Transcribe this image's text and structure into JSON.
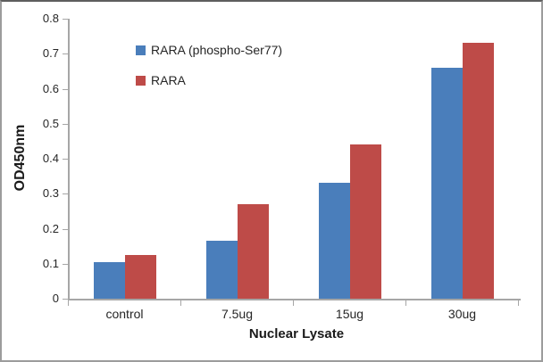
{
  "chart_data": {
    "type": "bar",
    "title": "",
    "xlabel": "Nuclear Lysate",
    "ylabel": "OD450nm",
    "categories": [
      "control",
      "7.5ug",
      "15ug",
      "30ug"
    ],
    "series": [
      {
        "name": "RARA (phospho-Ser77)",
        "color": "#4A7EBB",
        "values": [
          0.105,
          0.165,
          0.33,
          0.66
        ]
      },
      {
        "name": "RARA",
        "color": "#BE4B48",
        "values": [
          0.125,
          0.27,
          0.44,
          0.73
        ]
      }
    ],
    "ylim": [
      0,
      0.8
    ],
    "yticks": [
      "0",
      "0.1",
      "0.2",
      "0.3",
      "0.4",
      "0.5",
      "0.6",
      "0.7",
      "0.8"
    ],
    "grid": "off",
    "legend_position": "upper-left-inside"
  },
  "colors": {
    "axis": "#A6A6A6",
    "text": "#262626",
    "frame_border": "#9C9C9C"
  }
}
